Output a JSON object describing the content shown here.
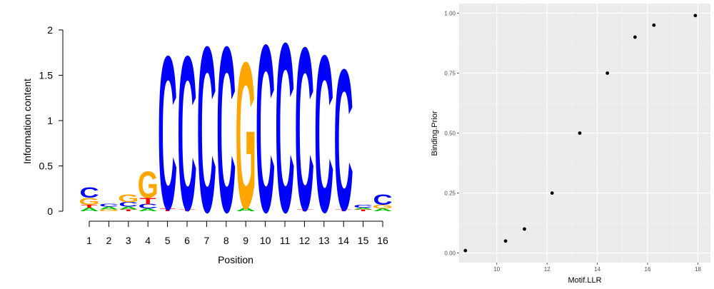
{
  "chart_data": [
    {
      "type": "sequence-logo",
      "xlabel": "Position",
      "ylabel": "Information content",
      "ylim": [
        0,
        2
      ],
      "yticks": [
        "0",
        "0.5",
        "1",
        "1.5",
        "2"
      ],
      "positions": [
        "1",
        "2",
        "3",
        "4",
        "5",
        "6",
        "7",
        "8",
        "9",
        "10",
        "11",
        "12",
        "13",
        "14",
        "15",
        "16"
      ],
      "colors": {
        "A": "#00c000",
        "C": "#0000ff",
        "G": "#ffa500",
        "T": "#ff0000"
      },
      "columns": [
        {
          "pos": "1",
          "letters": [
            {
              "base": "A",
              "height": 0.04
            },
            {
              "base": "T",
              "height": 0.03
            },
            {
              "base": "G",
              "height": 0.08
            },
            {
              "base": "C",
              "height": 0.12
            }
          ]
        },
        {
          "pos": "2",
          "letters": [
            {
              "base": "G",
              "height": 0.02
            },
            {
              "base": "A",
              "height": 0.03
            },
            {
              "base": "C",
              "height": 0.03
            }
          ]
        },
        {
          "pos": "3",
          "letters": [
            {
              "base": "T",
              "height": 0.02
            },
            {
              "base": "A",
              "height": 0.03
            },
            {
              "base": "C",
              "height": 0.05
            },
            {
              "base": "G",
              "height": 0.09
            }
          ]
        },
        {
          "pos": "4",
          "letters": [
            {
              "base": "A",
              "height": 0.03
            },
            {
              "base": "C",
              "height": 0.05
            },
            {
              "base": "T",
              "height": 0.07
            },
            {
              "base": "G",
              "height": 0.3
            }
          ]
        },
        {
          "pos": "5",
          "letters": [
            {
              "base": "T",
              "height": 0.03
            },
            {
              "base": "C",
              "height": 1.74
            }
          ]
        },
        {
          "pos": "6",
          "letters": [
            {
              "base": "T",
              "height": 0.02
            },
            {
              "base": "C",
              "height": 1.75
            }
          ]
        },
        {
          "pos": "7",
          "letters": [
            {
              "base": "C",
              "height": 1.88
            }
          ]
        },
        {
          "pos": "8",
          "letters": [
            {
              "base": "C",
              "height": 1.88
            }
          ]
        },
        {
          "pos": "9",
          "letters": [
            {
              "base": "A",
              "height": 0.04
            },
            {
              "base": "G",
              "height": 1.66
            }
          ]
        },
        {
          "pos": "10",
          "letters": [
            {
              "base": "C",
              "height": 1.9
            }
          ]
        },
        {
          "pos": "11",
          "letters": [
            {
              "base": "C",
              "height": 1.92
            }
          ]
        },
        {
          "pos": "12",
          "letters": [
            {
              "base": "T",
              "height": 0.02
            },
            {
              "base": "C",
              "height": 1.85
            }
          ]
        },
        {
          "pos": "13",
          "letters": [
            {
              "base": "C",
              "height": 1.78
            }
          ]
        },
        {
          "pos": "14",
          "letters": [
            {
              "base": "T",
              "height": 0.02
            },
            {
              "base": "C",
              "height": 1.6
            }
          ]
        },
        {
          "pos": "15",
          "letters": [
            {
              "base": "T",
              "height": 0.02
            },
            {
              "base": "A",
              "height": 0.02
            },
            {
              "base": "C",
              "height": 0.03
            }
          ]
        },
        {
          "pos": "16",
          "letters": [
            {
              "base": "A",
              "height": 0.03
            },
            {
              "base": "G",
              "height": 0.04
            },
            {
              "base": "C",
              "height": 0.12
            }
          ]
        }
      ]
    },
    {
      "type": "scatter",
      "xlabel": "Motif.LLR",
      "ylabel": "Binding.Prior",
      "xlim": [
        8.5,
        18.5
      ],
      "ylim": [
        -0.04,
        1.04
      ],
      "xticks": [
        10,
        12,
        14,
        16,
        18
      ],
      "yticks": [
        "0.00",
        "0.25",
        "0.50",
        "0.75",
        "1.00"
      ],
      "grid": true,
      "points": [
        {
          "x": 8.75,
          "y": 0.01
        },
        {
          "x": 10.35,
          "y": 0.05
        },
        {
          "x": 11.1,
          "y": 0.1
        },
        {
          "x": 12.2,
          "y": 0.25
        },
        {
          "x": 13.3,
          "y": 0.5
        },
        {
          "x": 14.4,
          "y": 0.75
        },
        {
          "x": 15.5,
          "y": 0.9
        },
        {
          "x": 16.25,
          "y": 0.95
        },
        {
          "x": 17.9,
          "y": 0.99
        }
      ]
    }
  ]
}
